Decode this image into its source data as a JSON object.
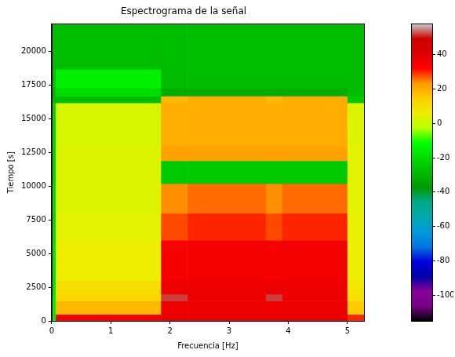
{
  "chart_data": {
    "type": "heatmap",
    "title": "Espectrograma de la señal",
    "x_label": "Frecuencia [Hz]",
    "y_label": "Tiempo [s]",
    "xlim": [
      0,
      5.28
    ],
    "ylim": [
      0,
      22050
    ],
    "xticks": [
      0,
      1,
      2,
      3,
      4,
      5
    ],
    "yticks": [
      0,
      2500,
      5000,
      7500,
      10000,
      12500,
      15000,
      17500,
      20000
    ],
    "x_edges": [
      0,
      0.07,
      1.85,
      2.3,
      3.62,
      3.9,
      5.0,
      5.28
    ],
    "y_edges": [
      0,
      500,
      1500,
      2000,
      3000,
      6000,
      8000,
      10200,
      11900,
      13000,
      16200,
      16700,
      17300,
      18700,
      22050
    ],
    "cells": [
      [
        -15,
        35,
        38,
        38,
        38,
        38,
        30
      ],
      [
        -15,
        18,
        36,
        37,
        36,
        37,
        15
      ],
      [
        -15,
        12,
        52,
        36,
        52,
        36,
        10
      ],
      [
        -18,
        10,
        36,
        36,
        36,
        36,
        8
      ],
      [
        -18,
        6,
        34,
        35,
        34,
        35,
        6
      ],
      [
        -20,
        4,
        28,
        30,
        28,
        30,
        5
      ],
      [
        -20,
        3,
        24,
        26,
        24,
        26,
        4
      ],
      [
        -22,
        3,
        -25,
        -25,
        -25,
        -25,
        4
      ],
      [
        -22,
        3,
        22,
        22,
        22,
        22,
        4
      ],
      [
        -22,
        2,
        20,
        20,
        20,
        20,
        3
      ],
      [
        -28,
        -28,
        18,
        20,
        18,
        20,
        -25
      ],
      [
        -30,
        -20,
        -32,
        -32,
        -32,
        -32,
        -28
      ],
      [
        -28,
        -15,
        -28,
        -28,
        -28,
        -28,
        -28
      ],
      [
        -28,
        -28,
        -28,
        -28,
        -28,
        -28,
        -28
      ]
    ],
    "colorbar": {
      "range": [
        -115,
        58
      ],
      "ticks": [
        -100,
        -80,
        -60,
        -40,
        -20,
        0,
        20,
        40
      ]
    }
  }
}
